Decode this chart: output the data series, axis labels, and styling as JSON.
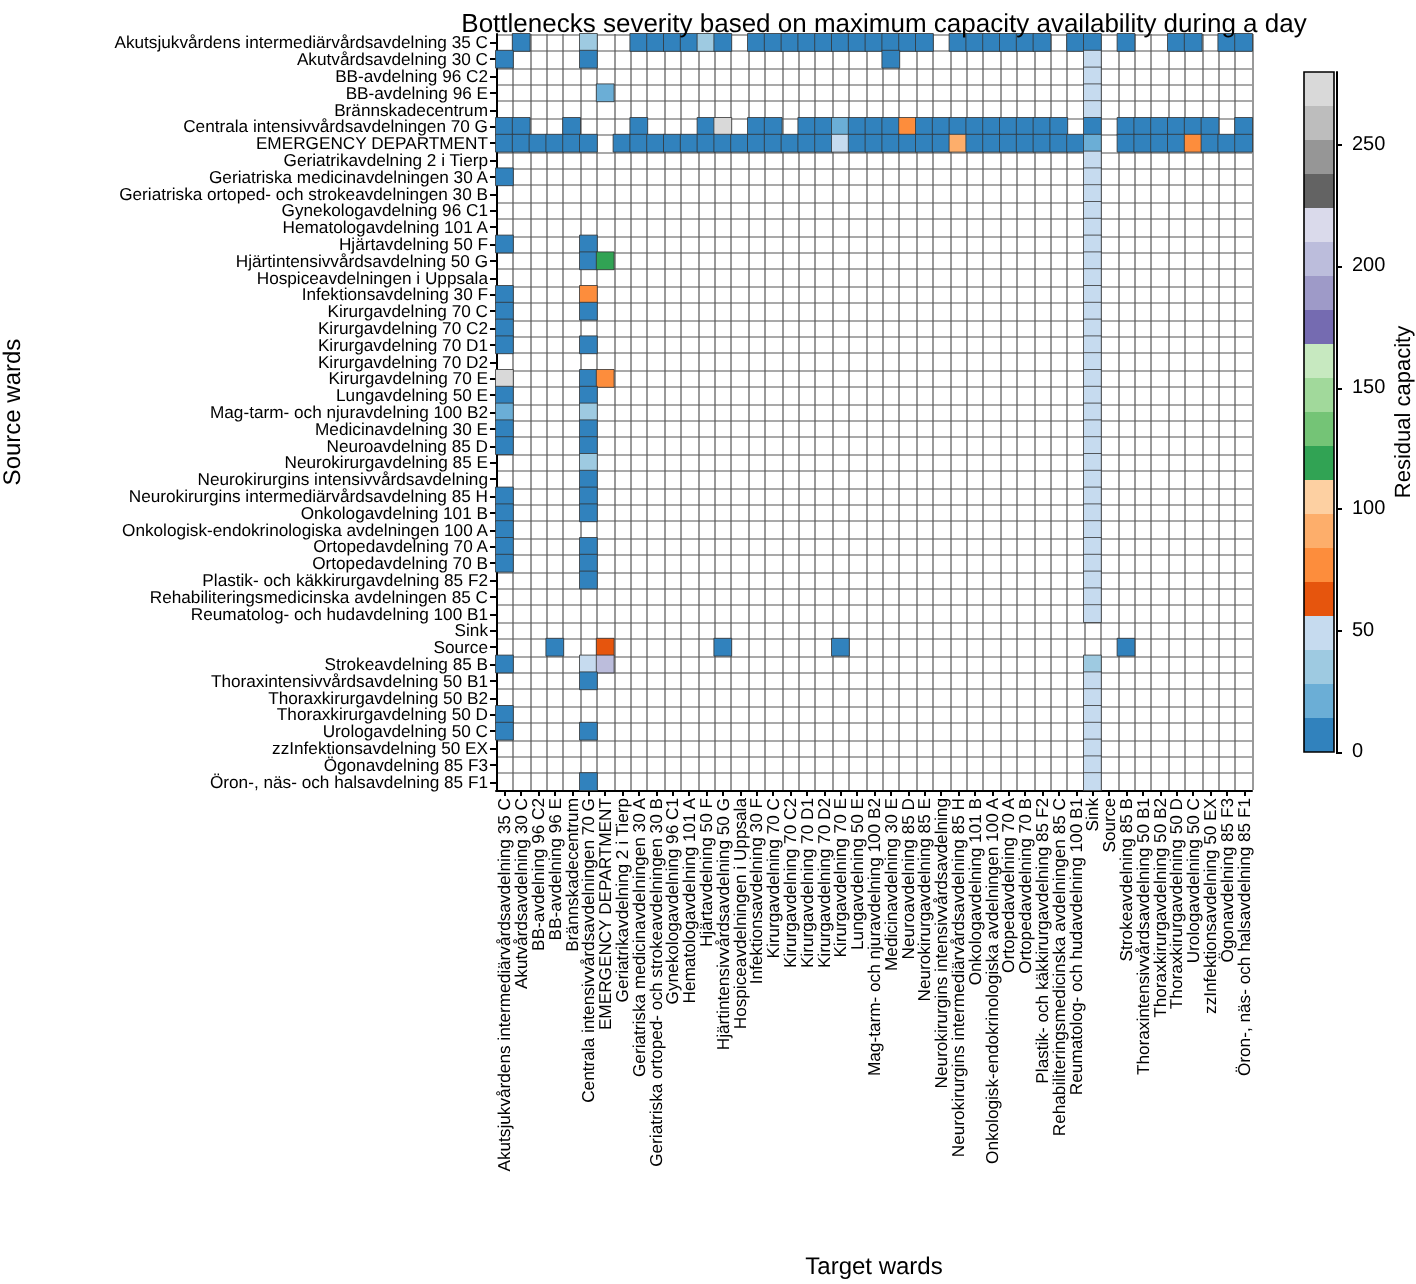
{
  "chart_data": {
    "type": "heatmap",
    "title": "Bottlenecks severity based on maximum capacity availability during a day",
    "xlabel": "Target wards",
    "ylabel": "Source wards",
    "clabel": "Residual capacity",
    "categories": [
      "Akutsjukvårdens intermediärvårdsavdelning 35 C",
      "Akutvårdsavdelning 30 C",
      "BB-avdelning 96 C2",
      "BB-avdelning 96 E",
      "Brännskadecentrum",
      "Centrala intensivvårdsavdelningen 70 G",
      "EMERGENCY DEPARTMENT",
      "Geriatrikavdelning 2 i Tierp",
      "Geriatriska medicinavdelningen 30 A",
      "Geriatriska ortoped- och strokeavdelningen 30 B",
      "Gynekologavdelning 96 C1",
      "Hematologavdelning 101 A",
      "Hjärtavdelning 50 F",
      "Hjärtintensivvårdsavdelning 50 G",
      "Hospiceavdelningen i Uppsala",
      "Infektionsavdelning 30 F",
      "Kirurgavdelning 70 C",
      "Kirurgavdelning 70 C2",
      "Kirurgavdelning 70 D1",
      "Kirurgavdelning 70 D2",
      "Kirurgavdelning 70 E",
      "Lungavdelning 50 E",
      "Mag-tarm- och njuravdelning 100 B2",
      "Medicinavdelning 30 E",
      "Neuroavdelning 85 D",
      "Neurokirurgavdelning 85 E",
      "Neurokirurgins intensivvårdsavdelning",
      "Neurokirurgins intermediärvårdsavdelning 85 H",
      "Onkologavdelning 101 B",
      "Onkologisk-endokrinologiska avdelningen 100 A",
      "Ortopedavdelning 70 A",
      "Ortopedavdelning 70 B",
      "Plastik- och käkkirurgavdelning 85 F2",
      "Rehabiliteringsmedicinska avdelningen 85 C",
      "Reumatolog- och hudavdelning 100 B1",
      "Sink",
      "Source",
      "Strokeavdelning 85 B",
      "Thoraxintensivvårdsavdelning 50 B1",
      "Thoraxkirurgavdelning 50 B2",
      "Thoraxkirurgavdelning 50 D",
      "Urologavdelning 50 C",
      "zzInfektionsavdelning 50 EX",
      "Ögonavdelning 85 F3",
      "Öron-, näs- och halsavdelning 85 F1"
    ],
    "y_categories": [
      "Akutsjukvårdens intermediärvårdsavdelning 35 C",
      "Akutvårdsavdelning 30 C",
      "BB-avdelning 96 C2",
      "BB-avdelning 96 E",
      "Brännskadecentrum",
      "Centrala intensivvårdsavdelningen 70 G",
      "EMERGENCY DEPARTMENT",
      "Geriatrikavdelning 2 i Tierp",
      "Geriatriska medicinavdelningen 30 A",
      "Geriatriska ortoped- och strokeavdelningen 30 B",
      "Gynekologavdelning 96 C1",
      "Hematologavdelning 101 A",
      "Hjärtavdelning 50 F",
      "Hjärtintensivvårdsavdelning 50 G",
      "Hospiceavdelningen i Uppsala",
      "Infektionsavdelning 30 F",
      "Kirurgavdelning 70 C",
      "Kirurgavdelning 70 C2",
      "Kirurgavdelning 70 D1",
      "Kirurgavdelning 70 D2",
      "Kirurgavdelning 70 E",
      "Lungavdelning 50 E",
      "Mag-tarm- och njuravdelning 100 B2",
      "Medicinavdelning 30 E",
      "Neuroavdelning 85 D",
      "Neurokirurgavdelning 85 E",
      "Neurokirurgins intensivvårdsavdelning",
      "Neurokirurgins intermediärvårdsavdelning 85 H",
      "Onkologavdelning 101 B",
      "Onkologisk-endokrinologiska avdelningen 100 A",
      "Ortopedavdelning 70 A",
      "Ortopedavdelning 70 B",
      "Plastik- och käkkirurgavdelning 85 F2",
      "Rehabiliteringsmedicinska avdelningen 85 C",
      "Reumatolog- och hudavdelning 100 B1",
      "Sink",
      "Source",
      "Strokeavdelning 85 B",
      "Thoraxintensivvårdsavdelning 50 B1",
      "Thoraxkirurgavdelning 50 B2",
      "Thoraxkirurgavdelning 50 D",
      "Urologavdelning 50 C",
      "zzInfektionsavdelning 50 EX",
      "Ögonavdelning 85 F3",
      "Öron-, näs- och halsavdelning 85 F1"
    ],
    "clim": [
      0,
      280
    ],
    "cticks": [
      0,
      50,
      100,
      150,
      200,
      250
    ],
    "colors": [
      "#3182bd",
      "#6baed6",
      "#9ecae1",
      "#c6dbef",
      "#e6550d",
      "#fd8d3c",
      "#fdae6b",
      "#fdd0a2",
      "#31a354",
      "#74c476",
      "#a1d99b",
      "#c7e9c0",
      "#756bb1",
      "#9e9ac8",
      "#bcbddc",
      "#dadaeb",
      "#636363",
      "#969696",
      "#bdbdbd",
      "#d9d9d9"
    ],
    "grid": true,
    "cells": [
      [
        null,
        7,
        null,
        null,
        null,
        35,
        null,
        null,
        7,
        7,
        7,
        7,
        35,
        7,
        null,
        7,
        7,
        7,
        7,
        7,
        7,
        7,
        7,
        7,
        7,
        7,
        null,
        7,
        7,
        7,
        7,
        7,
        7,
        null,
        7,
        7,
        null,
        7,
        null,
        null,
        7,
        7,
        null,
        7,
        7
      ],
      [
        7,
        null,
        null,
        null,
        null,
        7,
        null,
        null,
        null,
        null,
        null,
        null,
        null,
        null,
        null,
        null,
        null,
        null,
        null,
        null,
        null,
        null,
        null,
        7,
        null,
        null,
        null,
        null,
        null,
        null,
        null,
        null,
        null,
        null,
        null,
        49,
        null,
        null,
        null,
        null,
        null,
        null,
        null,
        null,
        null
      ],
      [
        null,
        null,
        null,
        null,
        null,
        null,
        null,
        null,
        null,
        null,
        null,
        null,
        null,
        null,
        null,
        null,
        null,
        null,
        null,
        null,
        null,
        null,
        null,
        null,
        null,
        null,
        null,
        null,
        null,
        null,
        null,
        null,
        null,
        null,
        null,
        49,
        null,
        null,
        null,
        null,
        null,
        null,
        null,
        null,
        null
      ],
      [
        null,
        null,
        null,
        null,
        null,
        null,
        21,
        null,
        null,
        null,
        null,
        null,
        null,
        null,
        null,
        null,
        null,
        null,
        null,
        null,
        null,
        null,
        null,
        null,
        null,
        null,
        null,
        null,
        null,
        null,
        null,
        null,
        null,
        null,
        null,
        49,
        null,
        null,
        null,
        null,
        null,
        null,
        null,
        null,
        null
      ],
      [
        null,
        null,
        null,
        null,
        null,
        null,
        null,
        null,
        null,
        null,
        null,
        null,
        null,
        null,
        null,
        null,
        null,
        null,
        null,
        null,
        null,
        null,
        null,
        null,
        null,
        null,
        null,
        null,
        null,
        null,
        null,
        null,
        null,
        null,
        null,
        49,
        null,
        null,
        null,
        null,
        null,
        null,
        null,
        null,
        null
      ],
      [
        7,
        7,
        null,
        null,
        7,
        null,
        null,
        null,
        7,
        null,
        null,
        null,
        7,
        273,
        null,
        7,
        7,
        null,
        7,
        7,
        21,
        7,
        7,
        7,
        77,
        7,
        7,
        7,
        7,
        7,
        7,
        7,
        7,
        7,
        null,
        7,
        null,
        7,
        7,
        7,
        7,
        7,
        7,
        null,
        7
      ],
      [
        7,
        7,
        7,
        7,
        7,
        7,
        null,
        7,
        7,
        7,
        7,
        7,
        7,
        7,
        7,
        7,
        7,
        7,
        7,
        7,
        49,
        7,
        7,
        7,
        7,
        7,
        7,
        91,
        7,
        7,
        7,
        7,
        7,
        7,
        7,
        21,
        null,
        7,
        7,
        7,
        7,
        77,
        7,
        7,
        7
      ],
      [
        null,
        null,
        null,
        null,
        null,
        null,
        null,
        null,
        null,
        null,
        null,
        null,
        null,
        null,
        null,
        null,
        null,
        null,
        null,
        null,
        null,
        null,
        null,
        null,
        null,
        null,
        null,
        null,
        null,
        null,
        null,
        null,
        null,
        null,
        null,
        49,
        null,
        null,
        null,
        null,
        null,
        null,
        null,
        null,
        null
      ],
      [
        7,
        null,
        null,
        null,
        null,
        null,
        null,
        null,
        null,
        null,
        null,
        null,
        null,
        null,
        null,
        null,
        null,
        null,
        null,
        null,
        null,
        null,
        null,
        null,
        null,
        null,
        null,
        null,
        null,
        null,
        null,
        null,
        null,
        null,
        null,
        49,
        null,
        null,
        null,
        null,
        null,
        null,
        null,
        null,
        null
      ],
      [
        null,
        null,
        null,
        null,
        null,
        null,
        null,
        null,
        null,
        null,
        null,
        null,
        null,
        null,
        null,
        null,
        null,
        null,
        null,
        null,
        null,
        null,
        null,
        null,
        null,
        null,
        null,
        null,
        null,
        null,
        null,
        null,
        null,
        null,
        null,
        49,
        null,
        null,
        null,
        null,
        null,
        null,
        null,
        null,
        null
      ],
      [
        null,
        null,
        null,
        null,
        null,
        null,
        null,
        null,
        null,
        null,
        null,
        null,
        null,
        null,
        null,
        null,
        null,
        null,
        null,
        null,
        null,
        null,
        null,
        null,
        null,
        null,
        null,
        null,
        null,
        null,
        null,
        null,
        null,
        null,
        null,
        49,
        null,
        null,
        null,
        null,
        null,
        null,
        null,
        null,
        null
      ],
      [
        null,
        null,
        null,
        null,
        null,
        null,
        null,
        null,
        null,
        null,
        null,
        null,
        null,
        null,
        null,
        null,
        null,
        null,
        null,
        null,
        null,
        null,
        null,
        null,
        null,
        null,
        null,
        null,
        null,
        null,
        null,
        null,
        null,
        null,
        null,
        49,
        null,
        null,
        null,
        null,
        null,
        null,
        null,
        null,
        null
      ],
      [
        7,
        null,
        null,
        null,
        null,
        7,
        null,
        null,
        null,
        null,
        null,
        null,
        null,
        null,
        null,
        null,
        null,
        null,
        null,
        null,
        null,
        null,
        null,
        null,
        null,
        null,
        null,
        null,
        null,
        null,
        null,
        null,
        null,
        null,
        null,
        49,
        null,
        null,
        null,
        null,
        null,
        null,
        null,
        null,
        null
      ],
      [
        null,
        null,
        null,
        null,
        null,
        7,
        119,
        null,
        null,
        null,
        null,
        null,
        null,
        null,
        null,
        null,
        null,
        null,
        null,
        null,
        null,
        null,
        null,
        null,
        null,
        null,
        null,
        null,
        null,
        null,
        null,
        null,
        null,
        null,
        null,
        49,
        null,
        null,
        null,
        null,
        null,
        null,
        null,
        null,
        null
      ],
      [
        null,
        null,
        null,
        null,
        null,
        null,
        null,
        null,
        null,
        null,
        null,
        null,
        null,
        null,
        null,
        null,
        null,
        null,
        null,
        null,
        null,
        null,
        null,
        null,
        null,
        null,
        null,
        null,
        null,
        null,
        null,
        null,
        null,
        null,
        null,
        49,
        null,
        null,
        null,
        null,
        null,
        null,
        null,
        null,
        null
      ],
      [
        7,
        null,
        null,
        null,
        null,
        77,
        null,
        null,
        null,
        null,
        null,
        null,
        null,
        null,
        null,
        null,
        null,
        null,
        null,
        null,
        null,
        null,
        null,
        null,
        null,
        null,
        null,
        null,
        null,
        null,
        null,
        null,
        null,
        null,
        null,
        49,
        null,
        null,
        null,
        null,
        null,
        null,
        null,
        null,
        null
      ],
      [
        7,
        null,
        null,
        null,
        null,
        7,
        null,
        null,
        null,
        null,
        null,
        null,
        null,
        null,
        null,
        null,
        null,
        null,
        null,
        null,
        null,
        null,
        null,
        null,
        null,
        null,
        null,
        null,
        null,
        null,
        null,
        null,
        null,
        null,
        null,
        49,
        null,
        null,
        null,
        null,
        null,
        null,
        null,
        null,
        null
      ],
      [
        7,
        null,
        null,
        null,
        null,
        null,
        null,
        null,
        null,
        null,
        null,
        null,
        null,
        null,
        null,
        null,
        null,
        null,
        null,
        null,
        null,
        null,
        null,
        null,
        null,
        null,
        null,
        null,
        null,
        null,
        null,
        null,
        null,
        null,
        null,
        49,
        null,
        null,
        null,
        null,
        null,
        null,
        null,
        null,
        null
      ],
      [
        7,
        null,
        null,
        null,
        null,
        7,
        null,
        null,
        null,
        null,
        null,
        null,
        null,
        null,
        null,
        null,
        null,
        null,
        null,
        null,
        null,
        null,
        null,
        null,
        null,
        null,
        null,
        null,
        null,
        null,
        null,
        null,
        null,
        null,
        null,
        49,
        null,
        null,
        null,
        null,
        null,
        null,
        null,
        null,
        null
      ],
      [
        null,
        null,
        null,
        null,
        null,
        null,
        null,
        null,
        null,
        null,
        null,
        null,
        null,
        null,
        null,
        null,
        null,
        null,
        null,
        null,
        null,
        null,
        null,
        null,
        null,
        null,
        null,
        null,
        null,
        null,
        null,
        null,
        null,
        null,
        null,
        49,
        null,
        null,
        null,
        null,
        null,
        null,
        null,
        null,
        null
      ],
      [
        273,
        null,
        null,
        null,
        null,
        7,
        77,
        null,
        null,
        null,
        null,
        null,
        null,
        null,
        null,
        null,
        null,
        null,
        null,
        null,
        null,
        null,
        null,
        null,
        null,
        null,
        null,
        null,
        null,
        null,
        null,
        null,
        null,
        null,
        null,
        49,
        null,
        null,
        null,
        null,
        null,
        null,
        null,
        null,
        null
      ],
      [
        7,
        null,
        null,
        null,
        null,
        7,
        null,
        null,
        null,
        null,
        null,
        null,
        null,
        null,
        null,
        null,
        null,
        null,
        null,
        null,
        null,
        null,
        null,
        null,
        null,
        null,
        null,
        null,
        null,
        null,
        null,
        null,
        null,
        null,
        null,
        49,
        null,
        null,
        null,
        null,
        null,
        null,
        null,
        null,
        null
      ],
      [
        21,
        null,
        null,
        null,
        null,
        35,
        null,
        null,
        null,
        null,
        null,
        null,
        null,
        null,
        null,
        null,
        null,
        null,
        null,
        null,
        null,
        null,
        null,
        null,
        null,
        null,
        null,
        null,
        null,
        null,
        null,
        null,
        null,
        null,
        null,
        49,
        null,
        null,
        null,
        null,
        null,
        null,
        null,
        null,
        null
      ],
      [
        7,
        null,
        null,
        null,
        null,
        7,
        null,
        null,
        null,
        null,
        null,
        null,
        null,
        null,
        null,
        null,
        null,
        null,
        null,
        null,
        null,
        null,
        null,
        null,
        null,
        null,
        null,
        null,
        null,
        null,
        null,
        null,
        null,
        null,
        null,
        49,
        null,
        null,
        null,
        null,
        null,
        null,
        null,
        null,
        null
      ],
      [
        7,
        null,
        null,
        null,
        null,
        7,
        null,
        null,
        null,
        null,
        null,
        null,
        null,
        null,
        null,
        null,
        null,
        null,
        null,
        null,
        null,
        null,
        null,
        null,
        null,
        null,
        null,
        null,
        null,
        null,
        null,
        null,
        null,
        null,
        null,
        49,
        null,
        null,
        null,
        null,
        null,
        null,
        null,
        null,
        null
      ],
      [
        null,
        null,
        null,
        null,
        null,
        35,
        null,
        null,
        null,
        null,
        null,
        null,
        null,
        null,
        null,
        null,
        null,
        null,
        null,
        null,
        null,
        null,
        null,
        null,
        null,
        null,
        null,
        null,
        null,
        null,
        null,
        null,
        null,
        null,
        null,
        49,
        null,
        null,
        null,
        null,
        null,
        null,
        null,
        null,
        null
      ],
      [
        null,
        null,
        null,
        null,
        null,
        7,
        null,
        null,
        null,
        null,
        null,
        null,
        null,
        null,
        null,
        null,
        null,
        null,
        null,
        null,
        null,
        null,
        null,
        null,
        null,
        null,
        null,
        null,
        null,
        null,
        null,
        null,
        null,
        null,
        null,
        49,
        null,
        null,
        null,
        null,
        null,
        null,
        null,
        null,
        null
      ],
      [
        7,
        null,
        null,
        null,
        null,
        7,
        null,
        null,
        null,
        null,
        null,
        null,
        null,
        null,
        null,
        null,
        null,
        null,
        null,
        null,
        null,
        null,
        null,
        null,
        null,
        null,
        null,
        null,
        null,
        null,
        null,
        null,
        null,
        null,
        null,
        49,
        null,
        null,
        null,
        null,
        null,
        null,
        null,
        null,
        null
      ],
      [
        7,
        null,
        null,
        null,
        null,
        7,
        null,
        null,
        null,
        null,
        null,
        null,
        null,
        null,
        null,
        null,
        null,
        null,
        null,
        null,
        null,
        null,
        null,
        null,
        null,
        null,
        null,
        null,
        null,
        null,
        null,
        null,
        null,
        null,
        null,
        49,
        null,
        null,
        null,
        null,
        null,
        null,
        null,
        null,
        null
      ],
      [
        7,
        null,
        null,
        null,
        null,
        null,
        null,
        null,
        null,
        null,
        null,
        null,
        null,
        null,
        null,
        null,
        null,
        null,
        null,
        null,
        null,
        null,
        null,
        null,
        null,
        null,
        null,
        null,
        null,
        null,
        null,
        null,
        null,
        null,
        null,
        49,
        null,
        null,
        null,
        null,
        null,
        null,
        null,
        null,
        null
      ],
      [
        7,
        null,
        null,
        null,
        null,
        7,
        null,
        null,
        null,
        null,
        null,
        null,
        null,
        null,
        null,
        null,
        null,
        null,
        null,
        null,
        null,
        null,
        null,
        null,
        null,
        null,
        null,
        null,
        null,
        null,
        null,
        null,
        null,
        null,
        null,
        49,
        null,
        null,
        null,
        null,
        null,
        null,
        null,
        null,
        null
      ],
      [
        7,
        null,
        null,
        null,
        null,
        7,
        null,
        null,
        null,
        null,
        null,
        null,
        null,
        null,
        null,
        null,
        null,
        null,
        null,
        null,
        null,
        null,
        null,
        null,
        null,
        null,
        null,
        null,
        null,
        null,
        null,
        null,
        null,
        null,
        null,
        49,
        null,
        null,
        null,
        null,
        null,
        null,
        null,
        null,
        null
      ],
      [
        null,
        null,
        null,
        null,
        null,
        7,
        null,
        null,
        null,
        null,
        null,
        null,
        null,
        null,
        null,
        null,
        null,
        null,
        null,
        null,
        null,
        null,
        null,
        null,
        null,
        null,
        null,
        null,
        null,
        null,
        null,
        null,
        null,
        null,
        null,
        49,
        null,
        null,
        null,
        null,
        null,
        null,
        null,
        null,
        null
      ],
      [
        null,
        null,
        null,
        null,
        null,
        null,
        null,
        null,
        null,
        null,
        null,
        null,
        null,
        null,
        null,
        null,
        null,
        null,
        null,
        null,
        null,
        null,
        null,
        null,
        null,
        null,
        null,
        null,
        null,
        null,
        null,
        null,
        null,
        null,
        null,
        49,
        null,
        null,
        null,
        null,
        null,
        null,
        null,
        null,
        null
      ],
      [
        null,
        null,
        null,
        null,
        null,
        null,
        null,
        null,
        null,
        null,
        null,
        null,
        null,
        null,
        null,
        null,
        null,
        null,
        null,
        null,
        null,
        null,
        null,
        null,
        null,
        null,
        null,
        null,
        null,
        null,
        null,
        null,
        null,
        null,
        null,
        49,
        null,
        null,
        null,
        null,
        null,
        null,
        null,
        null,
        null
      ],
      [
        null,
        null,
        null,
        null,
        null,
        null,
        null,
        null,
        null,
        null,
        null,
        null,
        null,
        null,
        null,
        null,
        null,
        null,
        null,
        null,
        null,
        null,
        null,
        null,
        null,
        null,
        null,
        null,
        null,
        null,
        null,
        null,
        null,
        null,
        null,
        null,
        null,
        null,
        null,
        null,
        null,
        null,
        null,
        null,
        null
      ],
      [
        null,
        null,
        null,
        7,
        null,
        null,
        63,
        null,
        null,
        null,
        null,
        null,
        null,
        7,
        null,
        null,
        null,
        null,
        null,
        null,
        7,
        null,
        null,
        null,
        null,
        null,
        null,
        null,
        null,
        null,
        null,
        null,
        null,
        null,
        null,
        null,
        null,
        7,
        null,
        null,
        null,
        null,
        null,
        null,
        null
      ],
      [
        7,
        null,
        null,
        null,
        null,
        49,
        203,
        null,
        null,
        null,
        null,
        null,
        null,
        null,
        null,
        null,
        null,
        null,
        null,
        null,
        null,
        null,
        null,
        null,
        null,
        null,
        null,
        null,
        null,
        null,
        null,
        null,
        null,
        null,
        null,
        35,
        null,
        null,
        null,
        null,
        null,
        null,
        null,
        null,
        null
      ],
      [
        null,
        null,
        null,
        null,
        null,
        7,
        null,
        null,
        null,
        null,
        null,
        null,
        null,
        null,
        null,
        null,
        null,
        null,
        null,
        null,
        null,
        null,
        null,
        null,
        null,
        null,
        null,
        null,
        null,
        null,
        null,
        null,
        null,
        null,
        null,
        49,
        null,
        null,
        null,
        null,
        null,
        null,
        null,
        null,
        null
      ],
      [
        null,
        null,
        null,
        null,
        null,
        null,
        null,
        null,
        null,
        null,
        null,
        null,
        null,
        null,
        null,
        null,
        null,
        null,
        null,
        null,
        null,
        null,
        null,
        null,
        null,
        null,
        null,
        null,
        null,
        null,
        null,
        null,
        null,
        null,
        null,
        49,
        null,
        null,
        null,
        null,
        null,
        null,
        null,
        null,
        null
      ],
      [
        7,
        null,
        null,
        null,
        null,
        null,
        null,
        null,
        null,
        null,
        null,
        null,
        null,
        null,
        null,
        null,
        null,
        null,
        null,
        null,
        null,
        null,
        null,
        null,
        null,
        null,
        null,
        null,
        null,
        null,
        null,
        null,
        null,
        null,
        null,
        49,
        null,
        null,
        null,
        null,
        null,
        null,
        null,
        null,
        null
      ],
      [
        7,
        null,
        null,
        null,
        null,
        7,
        null,
        null,
        null,
        null,
        null,
        null,
        null,
        null,
        null,
        null,
        null,
        null,
        null,
        null,
        null,
        null,
        null,
        null,
        null,
        null,
        null,
        null,
        null,
        null,
        null,
        null,
        null,
        null,
        null,
        49,
        null,
        null,
        null,
        null,
        null,
        null,
        null,
        null,
        null
      ],
      [
        null,
        null,
        null,
        null,
        null,
        null,
        null,
        null,
        null,
        null,
        null,
        null,
        null,
        null,
        null,
        null,
        null,
        null,
        null,
        null,
        null,
        null,
        null,
        null,
        null,
        null,
        null,
        null,
        null,
        null,
        null,
        null,
        null,
        null,
        null,
        49,
        null,
        null,
        null,
        null,
        null,
        null,
        null,
        null,
        null
      ],
      [
        null,
        null,
        null,
        null,
        null,
        null,
        null,
        null,
        null,
        null,
        null,
        null,
        null,
        null,
        null,
        null,
        null,
        null,
        null,
        null,
        null,
        null,
        null,
        null,
        null,
        null,
        null,
        null,
        null,
        null,
        null,
        null,
        null,
        null,
        null,
        49,
        null,
        null,
        null,
        null,
        null,
        null,
        null,
        null,
        null
      ],
      [
        null,
        null,
        null,
        null,
        null,
        7,
        null,
        null,
        null,
        null,
        null,
        null,
        null,
        null,
        null,
        null,
        null,
        null,
        null,
        null,
        null,
        null,
        null,
        null,
        null,
        null,
        null,
        null,
        null,
        null,
        null,
        null,
        null,
        null,
        null,
        49,
        null,
        null,
        null,
        null,
        null,
        null,
        null,
        null,
        null
      ]
    ]
  }
}
